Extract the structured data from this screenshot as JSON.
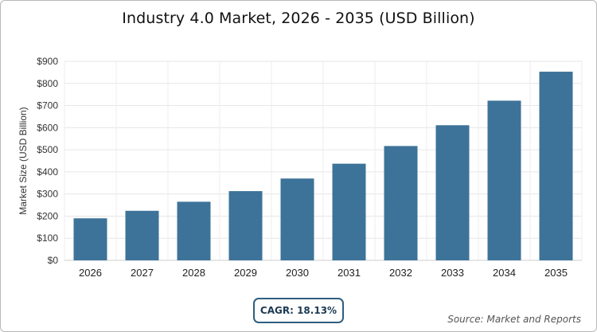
{
  "chart_data": {
    "type": "bar",
    "title": "Industry 4.0 Market, 2026 - 2035 (USD Billion)",
    "ylabel": "Market Size (USD Billion)",
    "xlabel": "",
    "categories": [
      "2026",
      "2027",
      "2028",
      "2029",
      "2030",
      "2031",
      "2032",
      "2033",
      "2034",
      "2035"
    ],
    "values": [
      190,
      224,
      265,
      313,
      370,
      437,
      517,
      611,
      722,
      853
    ],
    "ylim": [
      0,
      900
    ],
    "yticks": [
      0,
      100,
      200,
      300,
      400,
      500,
      600,
      700,
      800,
      900
    ],
    "ytick_labels": [
      "$0",
      "$100",
      "$200",
      "$300",
      "$400",
      "$500",
      "$600",
      "$700",
      "$800",
      "$900"
    ],
    "bar_color": "#3d7399",
    "grid": true,
    "legend": "none"
  },
  "badge": {
    "text": "CAGR: 18.13%"
  },
  "source": {
    "text": "Source: Market and Reports"
  }
}
